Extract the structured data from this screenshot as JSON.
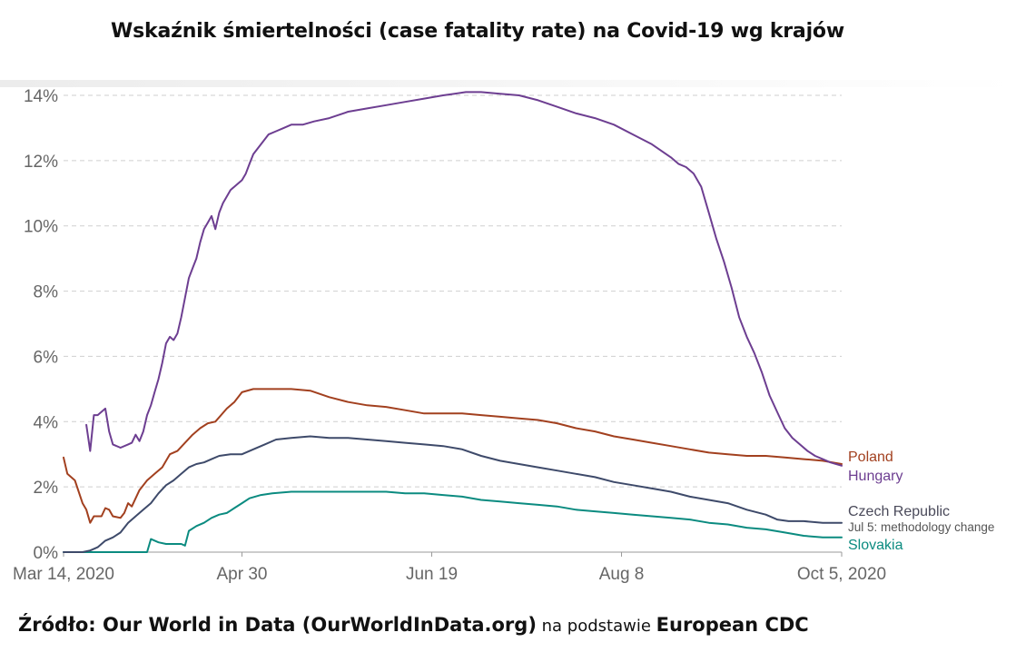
{
  "title": "Wskaźnik śmiertelności (case fatality rate)  na Covid-19 wg krajów",
  "source": {
    "part1": "Źródło: Our World in Data (OurWorldInData.org)",
    "part2": " na podstawie ",
    "part3": "European CDC"
  },
  "colors": {
    "Poland": "#a2401f",
    "Hungary": "#6d3e91",
    "Czech Republic": "#3e4a6a",
    "Slovakia": "#0b8b80",
    "grid": "#cfcfcf",
    "axis": "#9a9a9a"
  },
  "chart_data": {
    "type": "line",
    "title": "Wskaźnik śmiertelności (case fatality rate)  na Covid-19 wg krajów",
    "xlabel": "",
    "ylabel": "",
    "x_unit": "days since Mar 14, 2020",
    "xlim": [
      0,
      205
    ],
    "ylim": [
      0,
      14
    ],
    "yticks": [
      0,
      2,
      4,
      6,
      8,
      10,
      12,
      14
    ],
    "ytick_labels": [
      "0%",
      "2%",
      "4%",
      "6%",
      "8%",
      "10%",
      "12%",
      "14%"
    ],
    "xticks": [
      0,
      47,
      97,
      147,
      205
    ],
    "xtick_labels": [
      "Mar 14, 2020",
      "Apr 30",
      "Jun 19",
      "Aug 8",
      "Oct 5, 2020"
    ],
    "grid": true,
    "annotation": "Jul 5: methodology change",
    "series": [
      {
        "name": "Poland",
        "label": "Poland",
        "points": [
          [
            0,
            2.9
          ],
          [
            1,
            2.4
          ],
          [
            3,
            2.2
          ],
          [
            5,
            1.5
          ],
          [
            6,
            1.3
          ],
          [
            7,
            0.9
          ],
          [
            8,
            1.1
          ],
          [
            10,
            1.1
          ],
          [
            11,
            1.35
          ],
          [
            12,
            1.3
          ],
          [
            13,
            1.1
          ],
          [
            15,
            1.05
          ],
          [
            16,
            1.2
          ],
          [
            17,
            1.5
          ],
          [
            18,
            1.4
          ],
          [
            20,
            1.9
          ],
          [
            22,
            2.2
          ],
          [
            24,
            2.4
          ],
          [
            26,
            2.6
          ],
          [
            28,
            3.0
          ],
          [
            30,
            3.1
          ],
          [
            32,
            3.35
          ],
          [
            34,
            3.6
          ],
          [
            36,
            3.8
          ],
          [
            38,
            3.95
          ],
          [
            40,
            4.0
          ],
          [
            43,
            4.4
          ],
          [
            45,
            4.6
          ],
          [
            47,
            4.9
          ],
          [
            50,
            5.0
          ],
          [
            55,
            5.0
          ],
          [
            60,
            5.0
          ],
          [
            65,
            4.95
          ],
          [
            70,
            4.75
          ],
          [
            75,
            4.6
          ],
          [
            80,
            4.5
          ],
          [
            85,
            4.45
          ],
          [
            90,
            4.35
          ],
          [
            95,
            4.25
          ],
          [
            100,
            4.25
          ],
          [
            105,
            4.25
          ],
          [
            110,
            4.2
          ],
          [
            115,
            4.15
          ],
          [
            120,
            4.1
          ],
          [
            125,
            4.05
          ],
          [
            130,
            3.95
          ],
          [
            135,
            3.8
          ],
          [
            140,
            3.7
          ],
          [
            145,
            3.55
          ],
          [
            150,
            3.45
          ],
          [
            155,
            3.35
          ],
          [
            160,
            3.25
          ],
          [
            165,
            3.15
          ],
          [
            170,
            3.05
          ],
          [
            175,
            3.0
          ],
          [
            180,
            2.95
          ],
          [
            185,
            2.95
          ],
          [
            190,
            2.9
          ],
          [
            195,
            2.85
          ],
          [
            200,
            2.8
          ],
          [
            205,
            2.7
          ]
        ]
      },
      {
        "name": "Hungary",
        "label": "Hungary",
        "points": [
          [
            6,
            3.9
          ],
          [
            7,
            3.1
          ],
          [
            8,
            4.2
          ],
          [
            9,
            4.2
          ],
          [
            10,
            4.3
          ],
          [
            11,
            4.4
          ],
          [
            12,
            3.7
          ],
          [
            13,
            3.3
          ],
          [
            15,
            3.2
          ],
          [
            17,
            3.3
          ],
          [
            18,
            3.35
          ],
          [
            19,
            3.6
          ],
          [
            20,
            3.4
          ],
          [
            21,
            3.7
          ],
          [
            22,
            4.2
          ],
          [
            23,
            4.5
          ],
          [
            24,
            4.9
          ],
          [
            25,
            5.3
          ],
          [
            26,
            5.8
          ],
          [
            27,
            6.4
          ],
          [
            28,
            6.6
          ],
          [
            29,
            6.5
          ],
          [
            30,
            6.7
          ],
          [
            31,
            7.2
          ],
          [
            32,
            7.8
          ],
          [
            33,
            8.4
          ],
          [
            34,
            8.7
          ],
          [
            35,
            9.0
          ],
          [
            36,
            9.5
          ],
          [
            37,
            9.9
          ],
          [
            38,
            10.1
          ],
          [
            39,
            10.3
          ],
          [
            40,
            9.9
          ],
          [
            41,
            10.4
          ],
          [
            42,
            10.7
          ],
          [
            43,
            10.9
          ],
          [
            44,
            11.1
          ],
          [
            45,
            11.2
          ],
          [
            46,
            11.3
          ],
          [
            47,
            11.4
          ],
          [
            48,
            11.6
          ],
          [
            49,
            11.9
          ],
          [
            50,
            12.2
          ],
          [
            52,
            12.5
          ],
          [
            54,
            12.8
          ],
          [
            56,
            12.9
          ],
          [
            58,
            13.0
          ],
          [
            60,
            13.1
          ],
          [
            63,
            13.1
          ],
          [
            66,
            13.2
          ],
          [
            70,
            13.3
          ],
          [
            75,
            13.5
          ],
          [
            80,
            13.6
          ],
          [
            85,
            13.7
          ],
          [
            90,
            13.8
          ],
          [
            95,
            13.9
          ],
          [
            100,
            14.0
          ],
          [
            103,
            14.05
          ],
          [
            106,
            14.1
          ],
          [
            110,
            14.1
          ],
          [
            115,
            14.05
          ],
          [
            120,
            14.0
          ],
          [
            125,
            13.85
          ],
          [
            130,
            13.65
          ],
          [
            135,
            13.45
          ],
          [
            140,
            13.3
          ],
          [
            145,
            13.1
          ],
          [
            150,
            12.8
          ],
          [
            155,
            12.5
          ],
          [
            160,
            12.1
          ],
          [
            162,
            11.9
          ],
          [
            164,
            11.8
          ],
          [
            166,
            11.6
          ],
          [
            168,
            11.2
          ],
          [
            170,
            10.4
          ],
          [
            172,
            9.6
          ],
          [
            174,
            8.9
          ],
          [
            176,
            8.1
          ],
          [
            178,
            7.2
          ],
          [
            180,
            6.6
          ],
          [
            182,
            6.1
          ],
          [
            184,
            5.5
          ],
          [
            186,
            4.8
          ],
          [
            188,
            4.3
          ],
          [
            190,
            3.8
          ],
          [
            192,
            3.5
          ],
          [
            194,
            3.3
          ],
          [
            196,
            3.1
          ],
          [
            198,
            2.95
          ],
          [
            200,
            2.85
          ],
          [
            202,
            2.75
          ],
          [
            205,
            2.65
          ]
        ]
      },
      {
        "name": "Czech Republic",
        "label": "Czech Republic",
        "points": [
          [
            0,
            0.0
          ],
          [
            5,
            0.0
          ],
          [
            7,
            0.05
          ],
          [
            8,
            0.1
          ],
          [
            9,
            0.15
          ],
          [
            11,
            0.35
          ],
          [
            13,
            0.45
          ],
          [
            15,
            0.6
          ],
          [
            17,
            0.9
          ],
          [
            19,
            1.1
          ],
          [
            21,
            1.3
          ],
          [
            23,
            1.5
          ],
          [
            25,
            1.8
          ],
          [
            27,
            2.05
          ],
          [
            29,
            2.2
          ],
          [
            31,
            2.4
          ],
          [
            33,
            2.6
          ],
          [
            35,
            2.7
          ],
          [
            37,
            2.75
          ],
          [
            39,
            2.85
          ],
          [
            41,
            2.95
          ],
          [
            44,
            3.0
          ],
          [
            47,
            3.0
          ],
          [
            50,
            3.15
          ],
          [
            53,
            3.3
          ],
          [
            56,
            3.45
          ],
          [
            60,
            3.5
          ],
          [
            65,
            3.55
          ],
          [
            70,
            3.5
          ],
          [
            75,
            3.5
          ],
          [
            80,
            3.45
          ],
          [
            85,
            3.4
          ],
          [
            90,
            3.35
          ],
          [
            95,
            3.3
          ],
          [
            100,
            3.25
          ],
          [
            105,
            3.15
          ],
          [
            110,
            2.95
          ],
          [
            115,
            2.8
          ],
          [
            120,
            2.7
          ],
          [
            125,
            2.6
          ],
          [
            130,
            2.5
          ],
          [
            135,
            2.4
          ],
          [
            140,
            2.3
          ],
          [
            145,
            2.15
          ],
          [
            150,
            2.05
          ],
          [
            155,
            1.95
          ],
          [
            160,
            1.85
          ],
          [
            165,
            1.7
          ],
          [
            170,
            1.6
          ],
          [
            175,
            1.5
          ],
          [
            180,
            1.3
          ],
          [
            185,
            1.15
          ],
          [
            188,
            1.0
          ],
          [
            191,
            0.95
          ],
          [
            195,
            0.95
          ],
          [
            200,
            0.9
          ],
          [
            205,
            0.9
          ]
        ]
      },
      {
        "name": "Slovakia",
        "label": "Slovakia",
        "points": [
          [
            0,
            0.0
          ],
          [
            22,
            0.0
          ],
          [
            23,
            0.4
          ],
          [
            25,
            0.3
          ],
          [
            27,
            0.25
          ],
          [
            29,
            0.25
          ],
          [
            31,
            0.25
          ],
          [
            32,
            0.2
          ],
          [
            33,
            0.65
          ],
          [
            35,
            0.8
          ],
          [
            37,
            0.9
          ],
          [
            39,
            1.05
          ],
          [
            41,
            1.15
          ],
          [
            43,
            1.2
          ],
          [
            45,
            1.35
          ],
          [
            47,
            1.5
          ],
          [
            49,
            1.65
          ],
          [
            52,
            1.75
          ],
          [
            55,
            1.8
          ],
          [
            60,
            1.85
          ],
          [
            65,
            1.85
          ],
          [
            70,
            1.85
          ],
          [
            75,
            1.85
          ],
          [
            80,
            1.85
          ],
          [
            85,
            1.85
          ],
          [
            90,
            1.8
          ],
          [
            95,
            1.8
          ],
          [
            100,
            1.75
          ],
          [
            105,
            1.7
          ],
          [
            110,
            1.6
          ],
          [
            115,
            1.55
          ],
          [
            120,
            1.5
          ],
          [
            125,
            1.45
          ],
          [
            130,
            1.4
          ],
          [
            135,
            1.3
          ],
          [
            140,
            1.25
          ],
          [
            145,
            1.2
          ],
          [
            150,
            1.15
          ],
          [
            155,
            1.1
          ],
          [
            160,
            1.05
          ],
          [
            165,
            1.0
          ],
          [
            170,
            0.9
          ],
          [
            175,
            0.85
          ],
          [
            180,
            0.75
          ],
          [
            185,
            0.7
          ],
          [
            190,
            0.6
          ],
          [
            195,
            0.5
          ],
          [
            200,
            0.45
          ],
          [
            205,
            0.45
          ]
        ]
      }
    ]
  }
}
